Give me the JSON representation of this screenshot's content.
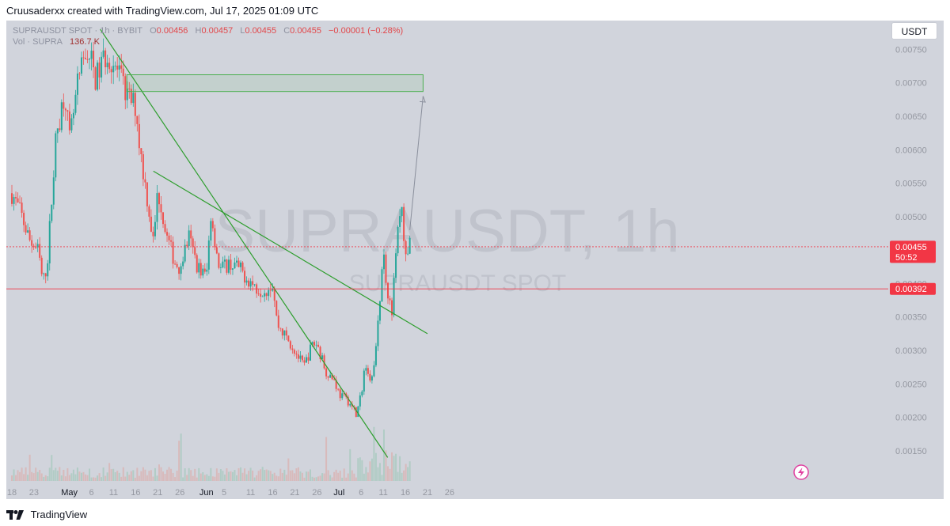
{
  "header": {
    "credit": "Cruusaderxx created with TradingView.com, Jul 17, 2025 01:09 UTC"
  },
  "legend": {
    "symbol": "SUPRAUSDT SPOT · 1h · BYBIT",
    "open_label": "O",
    "open": "0.00456",
    "high_label": "H",
    "high": "0.00457",
    "low_label": "L",
    "low": "0.00455",
    "close_label": "C",
    "close": "0.00455",
    "change": "−0.00001 (−0.28%)",
    "vol_label": "Vol · SUPRA",
    "vol": "136.7 K"
  },
  "currency_button": "USDT",
  "watermark": {
    "main": "SUPRAUSDT, 1h",
    "sub": "SUPRAUSDT SPOT"
  },
  "footer": {
    "brand": "TradingView"
  },
  "colors": {
    "up": "#26a69a",
    "down": "#ef5350",
    "trendline": "#2e9e2e",
    "price_tag": "#f23645",
    "support_line": "#f23645",
    "background": "#d1d4dc"
  },
  "chart_data": {
    "type": "candlestick",
    "y_axis_ticks": [
      "0.00150",
      "0.00200",
      "0.00250",
      "0.00300",
      "0.00350",
      "0.00400",
      "0.00450",
      "0.00500",
      "0.00550",
      "0.00600",
      "0.00650",
      "0.00700",
      "0.00750"
    ],
    "ylim": [
      0.00105,
      0.00793
    ],
    "x_axis_ticks": [
      "18",
      "23",
      "May",
      "6",
      "11",
      "16",
      "21",
      "26",
      "Jun",
      "5",
      "11",
      "16",
      "21",
      "26",
      "Jul",
      "6",
      "11",
      "16",
      "21",
      "26"
    ],
    "price_labels": [
      {
        "value": 0.00455,
        "text": "0.00455",
        "countdown": "50:52"
      },
      {
        "value": 0.00392,
        "text": "0.00392"
      }
    ],
    "close_path": [
      [
        "Apr 18",
        0.00535
      ],
      [
        "Apr 20",
        0.00505
      ],
      [
        "Apr 22",
        0.00465
      ],
      [
        "Apr 24",
        0.00448
      ],
      [
        "Apr 25",
        0.004
      ],
      [
        "Apr 26",
        0.0043
      ],
      [
        "Apr 28",
        0.0062
      ],
      [
        "Apr 30",
        0.0069
      ],
      [
        "May 1",
        0.0061
      ],
      [
        "May 3",
        0.007
      ],
      [
        "May 5",
        0.0075
      ],
      [
        "May 6",
        0.0073
      ],
      [
        "May 7",
        0.00705
      ],
      [
        "May 9",
        0.0074
      ],
      [
        "May 10",
        0.0074
      ],
      [
        "May 12",
        0.00715
      ],
      [
        "May 14",
        0.0068
      ],
      [
        "May 16",
        0.00665
      ],
      [
        "May 17",
        0.006
      ],
      [
        "May 19",
        0.0051
      ],
      [
        "May 20",
        0.0046
      ],
      [
        "May 21",
        0.0054
      ],
      [
        "May 23",
        0.0047
      ],
      [
        "May 25",
        0.0043
      ],
      [
        "May 26",
        0.00425
      ],
      [
        "May 28",
        0.0047
      ],
      [
        "May 30",
        0.00425
      ],
      [
        "Jun 1",
        0.0041
      ],
      [
        "Jun 2",
        0.00505
      ],
      [
        "Jun 4",
        0.0042
      ],
      [
        "Jun 6",
        0.0043
      ],
      [
        "Jun 8",
        0.00425
      ],
      [
        "Jun 10",
        0.0041
      ],
      [
        "Jun 12",
        0.00395
      ],
      [
        "Jun 14",
        0.0039
      ],
      [
        "Jun 16",
        0.004
      ],
      [
        "Jun 17",
        0.0034
      ],
      [
        "Jun 19",
        0.0032
      ],
      [
        "Jun 21",
        0.003
      ],
      [
        "Jun 23",
        0.00275
      ],
      [
        "Jun 25",
        0.0031
      ],
      [
        "Jun 26",
        0.0031
      ],
      [
        "Jun 28",
        0.0027
      ],
      [
        "Jun 30",
        0.00255
      ],
      [
        "Jul 1",
        0.00235
      ],
      [
        "Jul 3",
        0.00225
      ],
      [
        "Jul 5",
        0.00205
      ],
      [
        "Jul 6",
        0.00235
      ],
      [
        "Jul 7",
        0.00285
      ],
      [
        "Jul 8",
        0.0025
      ],
      [
        "Jul 9",
        0.0029
      ],
      [
        "Jul 10",
        0.0035
      ],
      [
        "Jul 11",
        0.0044
      ],
      [
        "Jul 12",
        0.0039
      ],
      [
        "Jul 13",
        0.0036
      ],
      [
        "Jul 14",
        0.0046
      ],
      [
        "Jul 15",
        0.0052
      ],
      [
        "Jul 16",
        0.00445
      ],
      [
        "Jul 17",
        0.00455
      ]
    ],
    "drawings": {
      "trendlines": [
        {
          "from": [
            "May 8",
            0.0078
          ],
          "to": [
            "Jul 12",
            0.0014
          ]
        },
        {
          "from": [
            "May 20",
            0.00568
          ],
          "to": [
            "Jul 21",
            0.00325
          ]
        }
      ],
      "target_zone": {
        "x_from": "May 14",
        "x_to": "Jul 20",
        "y_from": 0.00687,
        "y_to": 0.00712
      },
      "arrow": {
        "from": [
          "Jul 17",
          0.0048
        ],
        "to": [
          "Jul 20",
          0.0068
        ]
      }
    }
  }
}
